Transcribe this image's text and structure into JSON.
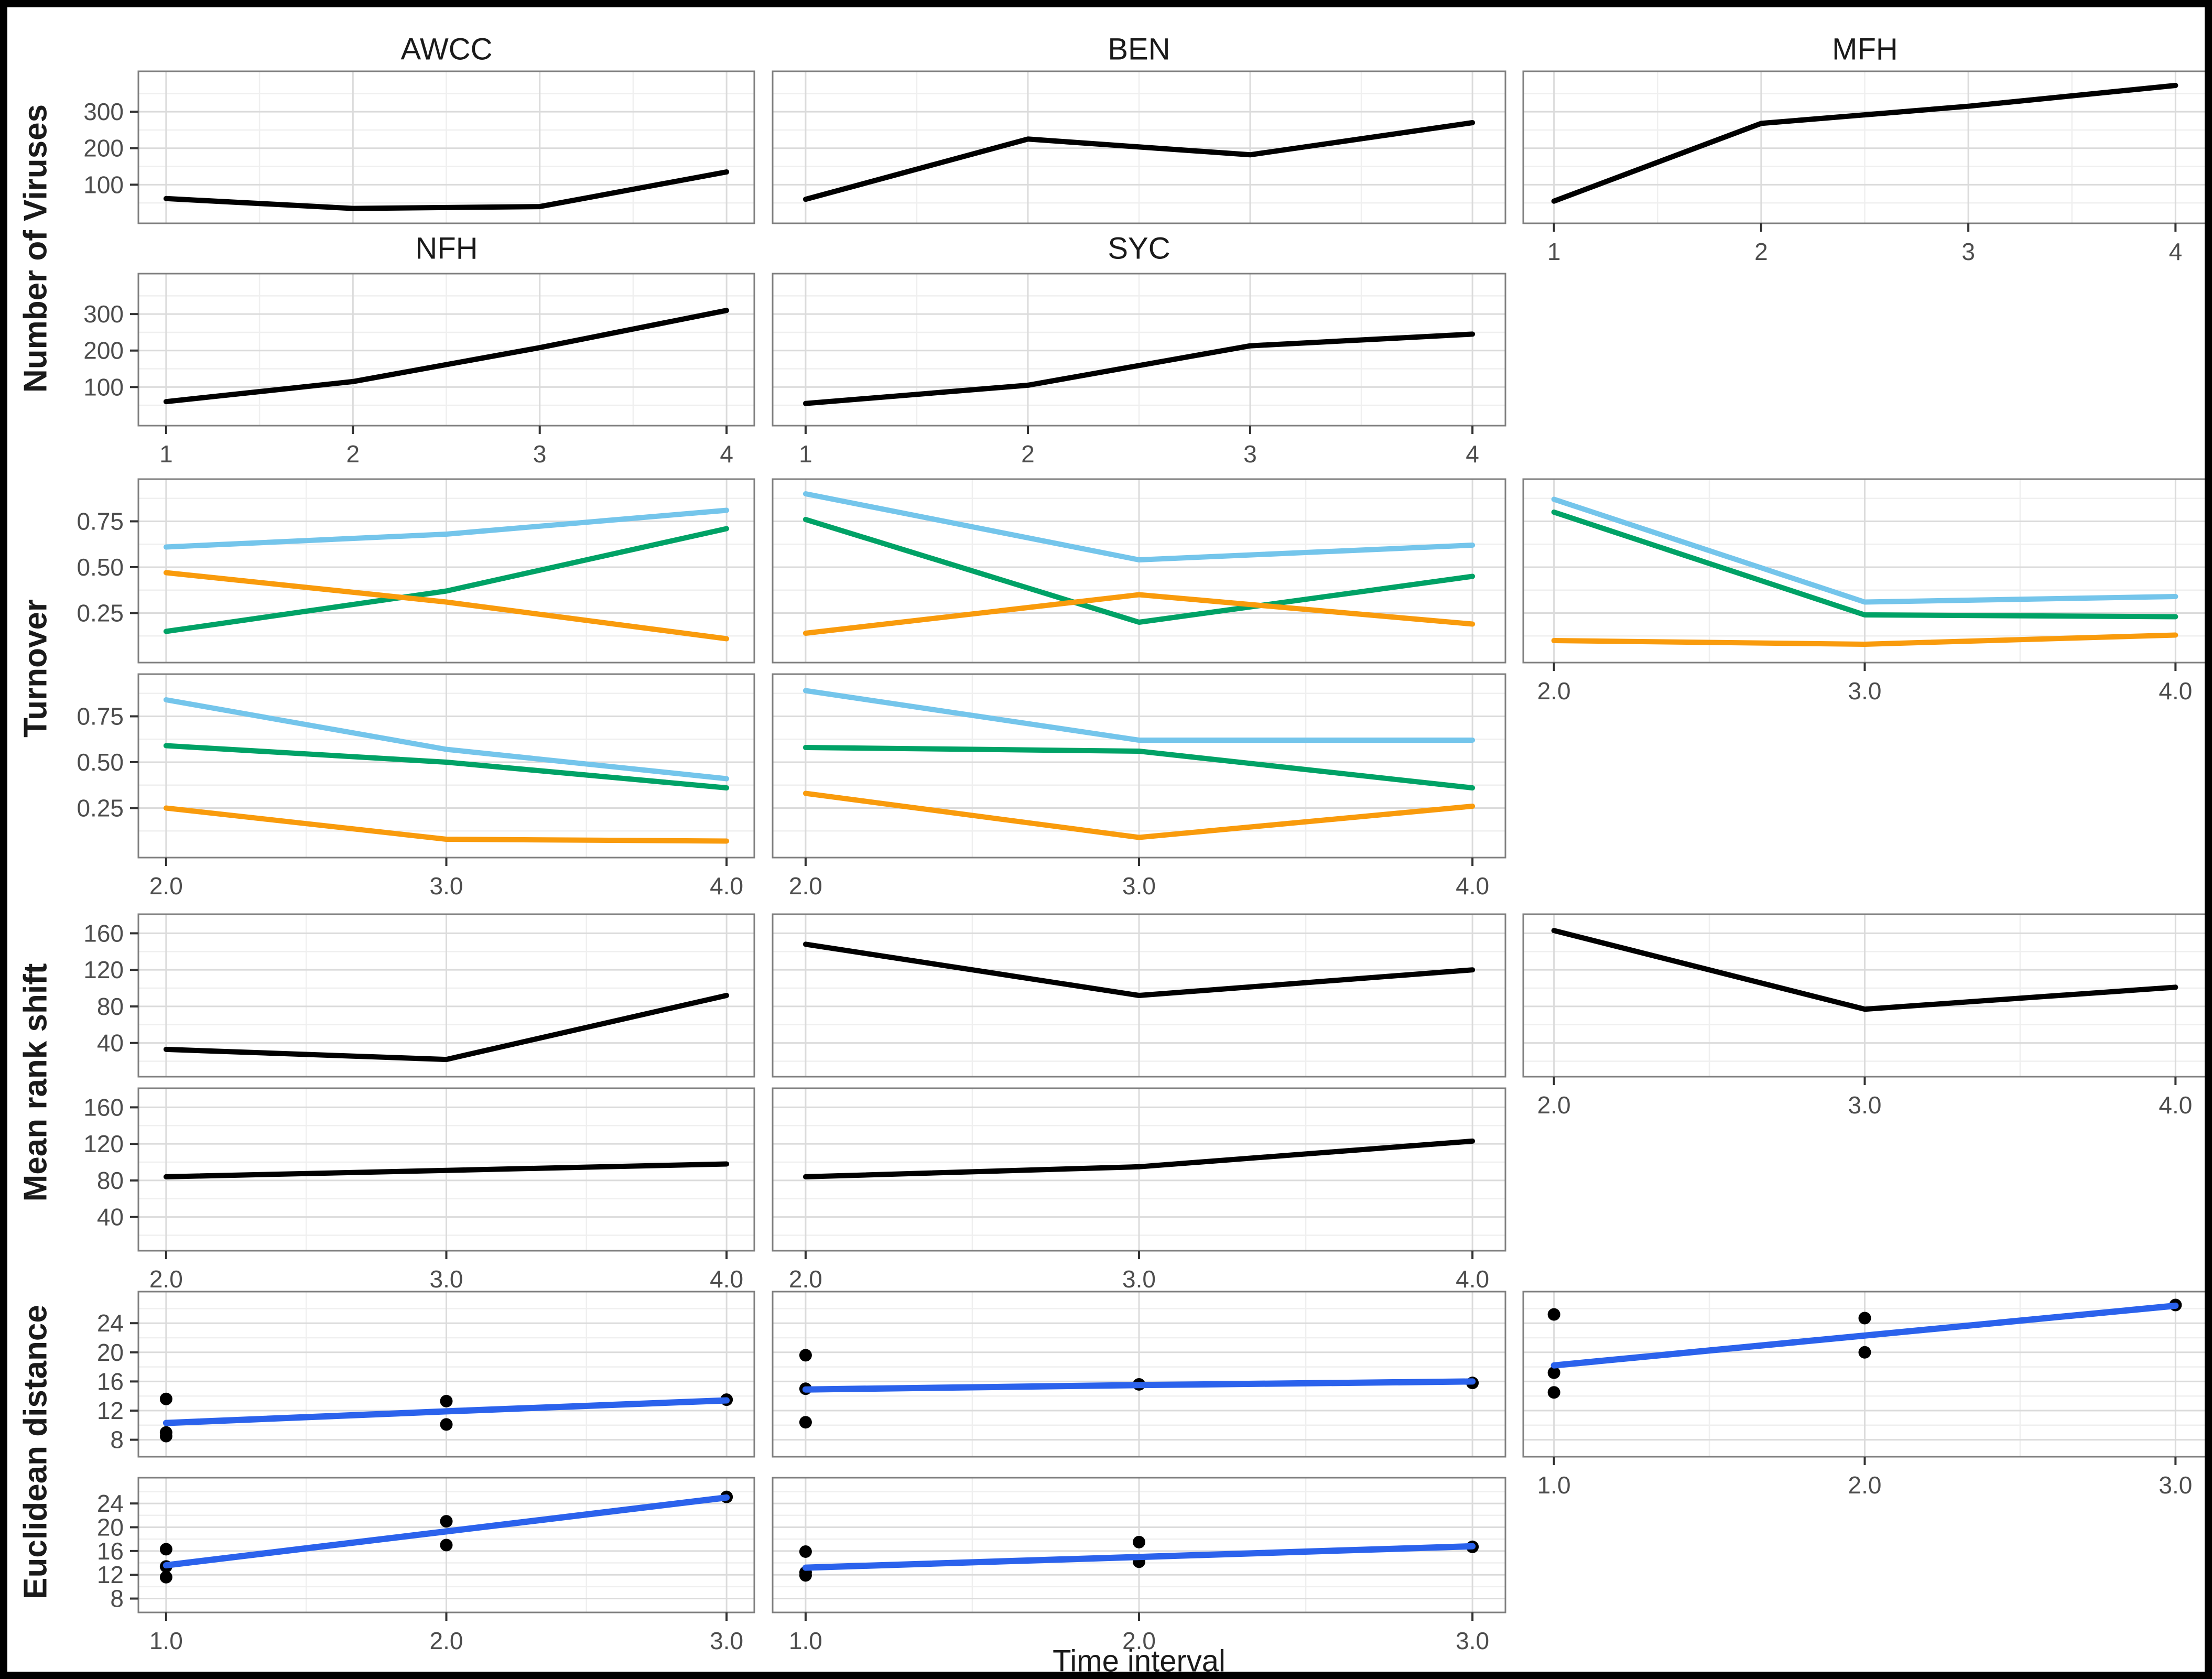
{
  "figure": {
    "x_axis_title": "Time interval",
    "background_color": "#ffffff",
    "border_color": "#000000"
  },
  "colors": {
    "black": "#000000",
    "light_blue": "#74C5EB",
    "green": "#00A266",
    "orange": "#F99B0C",
    "trend_blue": "#2B62EC"
  },
  "chart_data": [
    {
      "group": "Number of Viruses",
      "ylabel": "Number of Viruses",
      "type": "line",
      "show_titles": true,
      "xlim": [
        1,
        4
      ],
      "ylim": [
        15,
        390
      ],
      "x_major": [
        1,
        2,
        3,
        4
      ],
      "x_tick_labels": [
        "1",
        "2",
        "3",
        "4"
      ],
      "x_minor": [
        1.5,
        2.5,
        3.5
      ],
      "y_major": [
        100,
        200,
        300
      ],
      "y_tick_labels": [
        "100",
        "200",
        "300"
      ],
      "y_minor": [
        50,
        150,
        250,
        350
      ],
      "facets": [
        {
          "name": "AWCC",
          "row": 0,
          "col": 0,
          "series": [
            {
              "color": "black",
              "x": [
                1,
                2,
                3,
                4
              ],
              "y": [
                62,
                35,
                40,
                135
              ]
            }
          ]
        },
        {
          "name": "BEN",
          "row": 0,
          "col": 1,
          "series": [
            {
              "color": "black",
              "x": [
                1,
                2,
                3,
                4
              ],
              "y": [
                60,
                225,
                182,
                270
              ]
            }
          ]
        },
        {
          "name": "MFH",
          "row": 0,
          "col": 2,
          "series": [
            {
              "color": "black",
              "x": [
                1,
                2,
                3,
                4
              ],
              "y": [
                55,
                268,
                315,
                372
              ]
            }
          ]
        },
        {
          "name": "NFH",
          "row": 1,
          "col": 0,
          "series": [
            {
              "color": "black",
              "x": [
                1,
                2,
                3,
                4
              ],
              "y": [
                60,
                115,
                208,
                310
              ]
            }
          ]
        },
        {
          "name": "SYC",
          "row": 1,
          "col": 1,
          "series": [
            {
              "color": "black",
              "x": [
                1,
                2,
                3,
                4
              ],
              "y": [
                55,
                105,
                213,
                245
              ]
            }
          ]
        }
      ]
    },
    {
      "group": "Turnover",
      "ylabel": "Turnover",
      "type": "line",
      "show_titles": false,
      "xlim": [
        2,
        4
      ],
      "ylim": [
        0.03,
        0.93
      ],
      "x_major": [
        2,
        3,
        4
      ],
      "x_tick_labels": [
        "2.0",
        "3.0",
        "4.0"
      ],
      "x_minor": [
        2.5,
        3.5
      ],
      "y_major": [
        0.25,
        0.5,
        0.75
      ],
      "y_tick_labels": [
        "0.25",
        "0.50",
        "0.75"
      ],
      "y_minor": [
        0.125,
        0.375,
        0.625,
        0.875
      ],
      "facets": [
        {
          "name": "AWCC",
          "row": 0,
          "col": 0,
          "series": [
            {
              "color": "light_blue",
              "x": [
                2,
                3,
                4
              ],
              "y": [
                0.61,
                0.68,
                0.81
              ]
            },
            {
              "color": "green",
              "x": [
                2,
                3,
                4
              ],
              "y": [
                0.15,
                0.37,
                0.71
              ]
            },
            {
              "color": "orange",
              "x": [
                2,
                3,
                4
              ],
              "y": [
                0.47,
                0.31,
                0.11
              ]
            }
          ]
        },
        {
          "name": "BEN",
          "row": 0,
          "col": 1,
          "series": [
            {
              "color": "light_blue",
              "x": [
                2,
                3,
                4
              ],
              "y": [
                0.9,
                0.54,
                0.62
              ]
            },
            {
              "color": "green",
              "x": [
                2,
                3,
                4
              ],
              "y": [
                0.76,
                0.2,
                0.45
              ]
            },
            {
              "color": "orange",
              "x": [
                2,
                3,
                4
              ],
              "y": [
                0.14,
                0.35,
                0.19
              ]
            }
          ]
        },
        {
          "name": "MFH",
          "row": 0,
          "col": 2,
          "series": [
            {
              "color": "light_blue",
              "x": [
                2,
                3,
                4
              ],
              "y": [
                0.87,
                0.31,
                0.34
              ]
            },
            {
              "color": "green",
              "x": [
                2,
                3,
                4
              ],
              "y": [
                0.8,
                0.24,
                0.23
              ]
            },
            {
              "color": "orange",
              "x": [
                2,
                3,
                4
              ],
              "y": [
                0.1,
                0.08,
                0.13
              ]
            }
          ]
        },
        {
          "name": "NFH",
          "row": 1,
          "col": 0,
          "series": [
            {
              "color": "light_blue",
              "x": [
                2,
                3,
                4
              ],
              "y": [
                0.84,
                0.57,
                0.41
              ]
            },
            {
              "color": "green",
              "x": [
                2,
                3,
                4
              ],
              "y": [
                0.59,
                0.5,
                0.36
              ]
            },
            {
              "color": "orange",
              "x": [
                2,
                3,
                4
              ],
              "y": [
                0.25,
                0.08,
                0.07
              ]
            }
          ]
        },
        {
          "name": "SYC",
          "row": 1,
          "col": 1,
          "series": [
            {
              "color": "light_blue",
              "x": [
                2,
                3,
                4
              ],
              "y": [
                0.89,
                0.62,
                0.62
              ]
            },
            {
              "color": "green",
              "x": [
                2,
                3,
                4
              ],
              "y": [
                0.58,
                0.56,
                0.36
              ]
            },
            {
              "color": "orange",
              "x": [
                2,
                3,
                4
              ],
              "y": [
                0.33,
                0.09,
                0.26
              ]
            }
          ]
        }
      ]
    },
    {
      "group": "Mean rank shift",
      "ylabel": "Mean rank shift",
      "type": "line",
      "show_titles": false,
      "xlim": [
        2,
        4
      ],
      "ylim": [
        12,
        172
      ],
      "x_major": [
        2,
        3,
        4
      ],
      "x_tick_labels": [
        "2.0",
        "3.0",
        "4.0"
      ],
      "x_minor": [
        2.5,
        3.5
      ],
      "y_major": [
        40,
        80,
        120,
        160
      ],
      "y_tick_labels": [
        "40",
        "80",
        "120",
        "160"
      ],
      "y_minor": [
        20,
        60,
        100,
        140
      ],
      "facets": [
        {
          "name": "AWCC",
          "row": 0,
          "col": 0,
          "series": [
            {
              "color": "black",
              "x": [
                2,
                3,
                4
              ],
              "y": [
                33,
                22,
                92
              ]
            }
          ]
        },
        {
          "name": "BEN",
          "row": 0,
          "col": 1,
          "series": [
            {
              "color": "black",
              "x": [
                2,
                3,
                4
              ],
              "y": [
                148,
                92,
                120
              ]
            }
          ]
        },
        {
          "name": "MFH",
          "row": 0,
          "col": 2,
          "series": [
            {
              "color": "black",
              "x": [
                2,
                3,
                4
              ],
              "y": [
                163,
                77,
                101
              ]
            }
          ]
        },
        {
          "name": "NFH",
          "row": 1,
          "col": 0,
          "series": [
            {
              "color": "black",
              "x": [
                2,
                3,
                4
              ],
              "y": [
                84,
                91,
                98
              ]
            }
          ]
        },
        {
          "name": "SYC",
          "row": 1,
          "col": 1,
          "series": [
            {
              "color": "black",
              "x": [
                2,
                3,
                4
              ],
              "y": [
                84,
                95,
                123
              ]
            }
          ]
        }
      ]
    },
    {
      "group": "Euclidean distance",
      "ylabel": "Euclidean distance",
      "type": "scatter",
      "show_titles": false,
      "xlim": [
        1,
        3
      ],
      "ylim": [
        6.8,
        27.2
      ],
      "x_major": [
        1,
        2,
        3
      ],
      "x_tick_labels": [
        "1.0",
        "2.0",
        "3.0"
      ],
      "x_minor": [
        1.5,
        2.5
      ],
      "y_major": [
        8,
        12,
        16,
        20,
        24
      ],
      "y_tick_labels": [
        "8",
        "12",
        "16",
        "20",
        "24"
      ],
      "y_minor": [
        10,
        14,
        18,
        22,
        26
      ],
      "facets": [
        {
          "name": "AWCC",
          "row": 0,
          "col": 0,
          "points": [
            [
              1,
              13.6
            ],
            [
              1,
              9.0
            ],
            [
              1,
              8.5
            ],
            [
              2,
              13.3
            ],
            [
              2,
              10.1
            ],
            [
              3,
              13.5
            ]
          ],
          "trend": {
            "color": "trend_blue",
            "x": [
              1,
              2,
              3
            ],
            "y": [
              10.3,
              11.9,
              13.4
            ]
          }
        },
        {
          "name": "BEN",
          "row": 0,
          "col": 1,
          "points": [
            [
              1,
              19.6
            ],
            [
              1,
              15.0
            ],
            [
              1,
              10.4
            ],
            [
              2,
              15.6
            ],
            [
              3,
              15.8
            ]
          ],
          "trend": {
            "color": "trend_blue",
            "x": [
              1,
              2,
              3
            ],
            "y": [
              14.9,
              15.5,
              16.0
            ]
          }
        },
        {
          "name": "MFH",
          "row": 0,
          "col": 2,
          "points": [
            [
              1,
              25.2
            ],
            [
              1,
              17.2
            ],
            [
              1,
              14.5
            ],
            [
              2,
              24.7
            ],
            [
              2,
              20.0
            ],
            [
              3,
              26.5
            ]
          ],
          "trend": {
            "color": "trend_blue",
            "x": [
              1,
              2,
              3
            ],
            "y": [
              18.2,
              22.3,
              26.4
            ]
          }
        },
        {
          "name": "NFH",
          "row": 1,
          "col": 0,
          "points": [
            [
              1,
              16.3
            ],
            [
              1,
              13.4
            ],
            [
              1,
              11.6
            ],
            [
              2,
              21.0
            ],
            [
              2,
              17.0
            ],
            [
              3,
              25.1
            ]
          ],
          "trend": {
            "color": "trend_blue",
            "x": [
              1,
              2,
              3
            ],
            "y": [
              13.6,
              19.3,
              25.0
            ]
          }
        },
        {
          "name": "SYC",
          "row": 1,
          "col": 1,
          "points": [
            [
              1,
              15.9
            ],
            [
              1,
              12.4
            ],
            [
              1,
              11.9
            ],
            [
              2,
              17.5
            ],
            [
              2,
              14.2
            ],
            [
              3,
              16.7
            ]
          ],
          "trend": {
            "color": "trend_blue",
            "x": [
              1,
              2,
              3
            ],
            "y": [
              13.2,
              15.0,
              16.8
            ]
          }
        }
      ]
    }
  ]
}
